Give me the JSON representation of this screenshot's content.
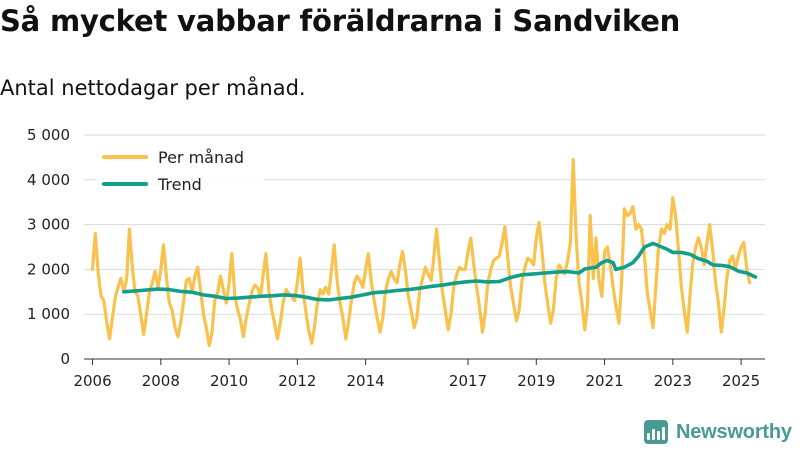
{
  "title": "Så mycket vabbar föräldrarna i Sandviken",
  "subtitle": "Antal nettodagar per månad.",
  "brand": {
    "name": "Newsworthy",
    "icon": "newsworthy-logo-icon"
  },
  "chart_data": {
    "type": "line",
    "title": "Så mycket vabbar föräldrarna i Sandviken",
    "subtitle": "Antal nettodagar per månad.",
    "xlabel": "",
    "ylabel": "",
    "ylim": [
      0,
      5000
    ],
    "xlim": [
      2005.75,
      2025.7
    ],
    "y_ticks": [
      0,
      1000,
      2000,
      3000,
      4000,
      5000
    ],
    "y_tick_labels": [
      "0",
      "1 000",
      "2 000",
      "3 000",
      "4 000",
      "5 000"
    ],
    "x_ticks": [
      2006,
      2008,
      2010,
      2012,
      2014,
      2017,
      2019,
      2021,
      2023,
      2025
    ],
    "x_tick_labels": [
      "2006",
      "2008",
      "2010",
      "2012",
      "2014",
      "2017",
      "2019",
      "2021",
      "2023",
      "2025"
    ],
    "grid": true,
    "legend": "top-left",
    "series": [
      {
        "name": "Per månad",
        "color": "#f8c24d",
        "points": [
          [
            2006.0,
            2000
          ],
          [
            2006.08,
            2800
          ],
          [
            2006.17,
            1900
          ],
          [
            2006.25,
            1400
          ],
          [
            2006.33,
            1300
          ],
          [
            2006.42,
            800
          ],
          [
            2006.5,
            450
          ],
          [
            2006.58,
            900
          ],
          [
            2006.67,
            1400
          ],
          [
            2006.75,
            1600
          ],
          [
            2006.83,
            1800
          ],
          [
            2006.92,
            1500
          ],
          [
            2007.0,
            1800
          ],
          [
            2007.08,
            2900
          ],
          [
            2007.17,
            2000
          ],
          [
            2007.25,
            1500
          ],
          [
            2007.33,
            1400
          ],
          [
            2007.42,
            950
          ],
          [
            2007.5,
            550
          ],
          [
            2007.58,
            1000
          ],
          [
            2007.67,
            1500
          ],
          [
            2007.75,
            1700
          ],
          [
            2007.83,
            1950
          ],
          [
            2007.92,
            1600
          ],
          [
            2008.0,
            2000
          ],
          [
            2008.08,
            2550
          ],
          [
            2008.17,
            1800
          ],
          [
            2008.25,
            1250
          ],
          [
            2008.33,
            1100
          ],
          [
            2008.42,
            700
          ],
          [
            2008.5,
            500
          ],
          [
            2008.58,
            800
          ],
          [
            2008.67,
            1300
          ],
          [
            2008.75,
            1750
          ],
          [
            2008.83,
            1800
          ],
          [
            2008.92,
            1500
          ],
          [
            2009.0,
            1850
          ],
          [
            2009.08,
            2050
          ],
          [
            2009.17,
            1500
          ],
          [
            2009.25,
            1000
          ],
          [
            2009.33,
            700
          ],
          [
            2009.42,
            300
          ],
          [
            2009.5,
            600
          ],
          [
            2009.58,
            1300
          ],
          [
            2009.67,
            1500
          ],
          [
            2009.75,
            1850
          ],
          [
            2009.83,
            1550
          ],
          [
            2009.92,
            1250
          ],
          [
            2010.0,
            1700
          ],
          [
            2010.08,
            2350
          ],
          [
            2010.17,
            1400
          ],
          [
            2010.25,
            1100
          ],
          [
            2010.33,
            900
          ],
          [
            2010.42,
            500
          ],
          [
            2010.5,
            900
          ],
          [
            2010.58,
            1200
          ],
          [
            2010.67,
            1500
          ],
          [
            2010.75,
            1650
          ],
          [
            2010.83,
            1600
          ],
          [
            2010.92,
            1400
          ],
          [
            2011.0,
            1900
          ],
          [
            2011.08,
            2350
          ],
          [
            2011.17,
            1500
          ],
          [
            2011.25,
            1100
          ],
          [
            2011.33,
            800
          ],
          [
            2011.42,
            450
          ],
          [
            2011.5,
            800
          ],
          [
            2011.58,
            1250
          ],
          [
            2011.67,
            1550
          ],
          [
            2011.75,
            1450
          ],
          [
            2011.83,
            1400
          ],
          [
            2011.92,
            1300
          ],
          [
            2012.0,
            1700
          ],
          [
            2012.08,
            2250
          ],
          [
            2012.17,
            1500
          ],
          [
            2012.25,
            1050
          ],
          [
            2012.33,
            650
          ],
          [
            2012.42,
            350
          ],
          [
            2012.5,
            700
          ],
          [
            2012.58,
            1200
          ],
          [
            2012.67,
            1550
          ],
          [
            2012.75,
            1450
          ],
          [
            2012.83,
            1600
          ],
          [
            2012.92,
            1450
          ],
          [
            2013.0,
            2000
          ],
          [
            2013.08,
            2550
          ],
          [
            2013.17,
            1700
          ],
          [
            2013.25,
            1250
          ],
          [
            2013.33,
            950
          ],
          [
            2013.42,
            450
          ],
          [
            2013.5,
            800
          ],
          [
            2013.58,
            1300
          ],
          [
            2013.67,
            1700
          ],
          [
            2013.75,
            1850
          ],
          [
            2013.83,
            1750
          ],
          [
            2013.92,
            1600
          ],
          [
            2014.0,
            2000
          ],
          [
            2014.08,
            2350
          ],
          [
            2014.17,
            1700
          ],
          [
            2014.25,
            1300
          ],
          [
            2014.33,
            950
          ],
          [
            2014.42,
            600
          ],
          [
            2014.5,
            900
          ],
          [
            2014.58,
            1500
          ],
          [
            2014.67,
            1800
          ],
          [
            2014.75,
            1950
          ],
          [
            2014.83,
            1800
          ],
          [
            2014.92,
            1700
          ],
          [
            2015.0,
            2100
          ],
          [
            2015.08,
            2400
          ],
          [
            2015.17,
            1950
          ],
          [
            2015.25,
            1400
          ],
          [
            2015.33,
            1100
          ],
          [
            2015.42,
            700
          ],
          [
            2015.5,
            900
          ],
          [
            2015.58,
            1500
          ],
          [
            2015.67,
            1800
          ],
          [
            2015.75,
            2050
          ],
          [
            2015.83,
            1900
          ],
          [
            2015.92,
            1750
          ],
          [
            2016.0,
            2300
          ],
          [
            2016.08,
            2900
          ],
          [
            2016.17,
            2100
          ],
          [
            2016.25,
            1500
          ],
          [
            2016.33,
            1100
          ],
          [
            2016.42,
            650
          ],
          [
            2016.5,
            1000
          ],
          [
            2016.58,
            1600
          ],
          [
            2016.67,
            1900
          ],
          [
            2016.75,
            2050
          ],
          [
            2016.83,
            2000
          ],
          [
            2016.92,
            2000
          ],
          [
            2017.0,
            2400
          ],
          [
            2017.08,
            2700
          ],
          [
            2017.17,
            2100
          ],
          [
            2017.25,
            1600
          ],
          [
            2017.33,
            1200
          ],
          [
            2017.42,
            600
          ],
          [
            2017.5,
            1000
          ],
          [
            2017.58,
            1700
          ],
          [
            2017.67,
            2000
          ],
          [
            2017.75,
            2200
          ],
          [
            2017.83,
            2250
          ],
          [
            2017.92,
            2300
          ],
          [
            2018.0,
            2600
          ],
          [
            2018.08,
            2950
          ],
          [
            2018.17,
            2200
          ],
          [
            2018.25,
            1600
          ],
          [
            2018.33,
            1250
          ],
          [
            2018.42,
            850
          ],
          [
            2018.5,
            1100
          ],
          [
            2018.58,
            1750
          ],
          [
            2018.67,
            2050
          ],
          [
            2018.75,
            2250
          ],
          [
            2018.83,
            2200
          ],
          [
            2018.92,
            2100
          ],
          [
            2019.0,
            2700
          ],
          [
            2019.08,
            3050
          ],
          [
            2019.17,
            2400
          ],
          [
            2019.25,
            1700
          ],
          [
            2019.33,
            1250
          ],
          [
            2019.42,
            800
          ],
          [
            2019.5,
            1100
          ],
          [
            2019.58,
            1800
          ],
          [
            2019.67,
            2100
          ],
          [
            2019.75,
            2000
          ],
          [
            2019.83,
            1900
          ],
          [
            2019.92,
            2200
          ],
          [
            2020.0,
            2600
          ],
          [
            2020.08,
            4450
          ],
          [
            2020.17,
            2700
          ],
          [
            2020.25,
            1700
          ],
          [
            2020.33,
            1300
          ],
          [
            2020.42,
            650
          ],
          [
            2020.5,
            1200
          ],
          [
            2020.58,
            3200
          ],
          [
            2020.67,
            1800
          ],
          [
            2020.75,
            2700
          ],
          [
            2020.83,
            1800
          ],
          [
            2020.92,
            1400
          ],
          [
            2021.0,
            2400
          ],
          [
            2021.08,
            2500
          ],
          [
            2021.17,
            2100
          ],
          [
            2021.25,
            1600
          ],
          [
            2021.33,
            1200
          ],
          [
            2021.42,
            800
          ],
          [
            2021.5,
            1700
          ],
          [
            2021.58,
            3350
          ],
          [
            2021.67,
            3200
          ],
          [
            2021.75,
            3250
          ],
          [
            2021.83,
            3400
          ],
          [
            2021.92,
            2900
          ],
          [
            2022.0,
            3000
          ],
          [
            2022.08,
            2900
          ],
          [
            2022.17,
            2300
          ],
          [
            2022.25,
            1500
          ],
          [
            2022.33,
            1100
          ],
          [
            2022.42,
            700
          ],
          [
            2022.5,
            1600
          ],
          [
            2022.58,
            2500
          ],
          [
            2022.67,
            2900
          ],
          [
            2022.75,
            2800
          ],
          [
            2022.83,
            3000
          ],
          [
            2022.92,
            2900
          ],
          [
            2023.0,
            3600
          ],
          [
            2023.08,
            3200
          ],
          [
            2023.17,
            2400
          ],
          [
            2023.25,
            1600
          ],
          [
            2023.33,
            1100
          ],
          [
            2023.42,
            600
          ],
          [
            2023.5,
            1400
          ],
          [
            2023.58,
            2100
          ],
          [
            2023.67,
            2500
          ],
          [
            2023.75,
            2700
          ],
          [
            2023.83,
            2500
          ],
          [
            2023.92,
            2100
          ],
          [
            2024.0,
            2600
          ],
          [
            2024.08,
            3000
          ],
          [
            2024.17,
            2400
          ],
          [
            2024.25,
            1700
          ],
          [
            2024.33,
            1300
          ],
          [
            2024.42,
            600
          ],
          [
            2024.5,
            1100
          ],
          [
            2024.58,
            1800
          ],
          [
            2024.67,
            2200
          ],
          [
            2024.75,
            2300
          ],
          [
            2024.83,
            2000
          ],
          [
            2024.92,
            2300
          ],
          [
            2025.0,
            2500
          ],
          [
            2025.08,
            2600
          ],
          [
            2025.17,
            2000
          ],
          [
            2025.25,
            1700
          ]
        ]
      },
      {
        "name": "Trend",
        "color": "#139e8c",
        "points": [
          [
            2006.92,
            1500
          ],
          [
            2007.25,
            1520
          ],
          [
            2007.58,
            1540
          ],
          [
            2007.92,
            1560
          ],
          [
            2008.25,
            1550
          ],
          [
            2008.58,
            1510
          ],
          [
            2008.92,
            1490
          ],
          [
            2009.25,
            1430
          ],
          [
            2009.58,
            1400
          ],
          [
            2009.92,
            1350
          ],
          [
            2010.25,
            1360
          ],
          [
            2010.58,
            1380
          ],
          [
            2010.92,
            1400
          ],
          [
            2011.25,
            1410
          ],
          [
            2011.58,
            1430
          ],
          [
            2011.92,
            1420
          ],
          [
            2012.25,
            1380
          ],
          [
            2012.58,
            1330
          ],
          [
            2012.92,
            1320
          ],
          [
            2013.25,
            1350
          ],
          [
            2013.58,
            1380
          ],
          [
            2013.92,
            1430
          ],
          [
            2014.25,
            1480
          ],
          [
            2014.58,
            1500
          ],
          [
            2014.92,
            1530
          ],
          [
            2015.25,
            1550
          ],
          [
            2015.58,
            1580
          ],
          [
            2015.92,
            1620
          ],
          [
            2016.25,
            1650
          ],
          [
            2016.58,
            1690
          ],
          [
            2016.92,
            1720
          ],
          [
            2017.25,
            1740
          ],
          [
            2017.58,
            1720
          ],
          [
            2017.92,
            1730
          ],
          [
            2018.25,
            1820
          ],
          [
            2018.58,
            1880
          ],
          [
            2018.92,
            1900
          ],
          [
            2019.25,
            1920
          ],
          [
            2019.58,
            1940
          ],
          [
            2019.92,
            1950
          ],
          [
            2020.25,
            1920
          ],
          [
            2020.42,
            2010
          ],
          [
            2020.75,
            2050
          ],
          [
            2020.92,
            2150
          ],
          [
            2021.08,
            2200
          ],
          [
            2021.25,
            2150
          ],
          [
            2021.33,
            2000
          ],
          [
            2021.58,
            2050
          ],
          [
            2021.83,
            2150
          ],
          [
            2022.0,
            2300
          ],
          [
            2022.17,
            2500
          ],
          [
            2022.42,
            2580
          ],
          [
            2022.67,
            2500
          ],
          [
            2022.83,
            2450
          ],
          [
            2023.0,
            2380
          ],
          [
            2023.25,
            2380
          ],
          [
            2023.5,
            2340
          ],
          [
            2023.75,
            2240
          ],
          [
            2024.0,
            2180
          ],
          [
            2024.17,
            2100
          ],
          [
            2024.42,
            2090
          ],
          [
            2024.67,
            2060
          ],
          [
            2024.92,
            1960
          ],
          [
            2025.17,
            1920
          ],
          [
            2025.42,
            1830
          ]
        ]
      }
    ]
  }
}
